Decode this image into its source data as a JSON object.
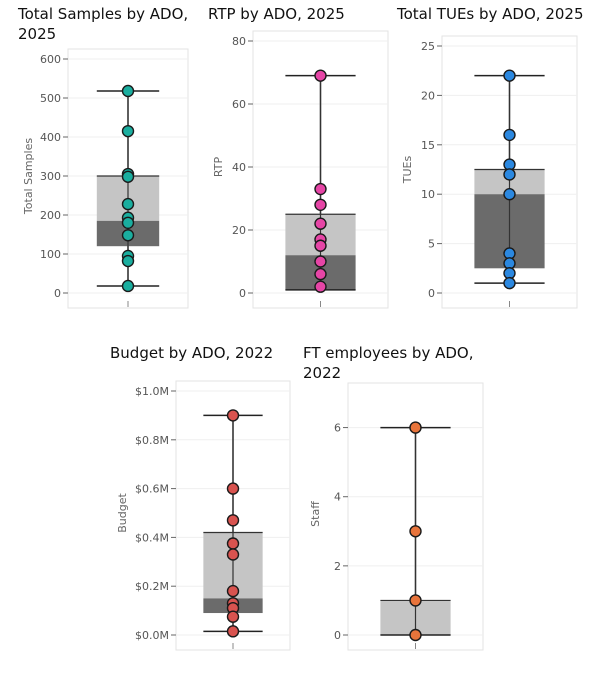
{
  "chart_data": [
    {
      "type": "box",
      "title": "Total Samples by ADO, 2025",
      "ylabel": "Total Samples",
      "ylim": [
        0,
        600
      ],
      "yticks": [
        0,
        100,
        200,
        300,
        400,
        500,
        600
      ],
      "tick_labels": [
        "0",
        "100",
        "200",
        "300",
        "400",
        "500",
        "600"
      ],
      "box": {
        "min": 18,
        "q1": 120,
        "median": 185,
        "q3": 300,
        "max": 518
      },
      "points": [
        518,
        415,
        305,
        298,
        228,
        193,
        180,
        148,
        95,
        82,
        18
      ],
      "point_color": "#1aae9f"
    },
    {
      "type": "box",
      "title": "RTP by ADO, 2025",
      "ylabel": "RTP",
      "ylim": [
        0,
        80
      ],
      "yticks": [
        0,
        20,
        40,
        60,
        80
      ],
      "tick_labels": [
        "0",
        "20",
        "40",
        "60",
        "80"
      ],
      "box": {
        "min": 1,
        "q1": 1,
        "median": 12,
        "q3": 25,
        "max": 69
      },
      "points": [
        69,
        33,
        28,
        22,
        17,
        15,
        10,
        6,
        2
      ],
      "point_color": "#e645a6"
    },
    {
      "type": "box",
      "title": "Total TUEs by ADO, 2025",
      "ylabel": "TUEs",
      "ylim": [
        0,
        25
      ],
      "yticks": [
        0,
        5,
        10,
        15,
        20,
        25
      ],
      "tick_labels": [
        "0",
        "5",
        "10",
        "15",
        "20",
        "25"
      ],
      "box": {
        "min": 1,
        "q1": 2.5,
        "median": 10,
        "q3": 12.5,
        "max": 22
      },
      "points": [
        22,
        16,
        13,
        12,
        10,
        4,
        3,
        2,
        1
      ],
      "point_color": "#2b88e0"
    },
    {
      "type": "box",
      "title": "Budget by ADO, 2022",
      "ylabel": "Budget",
      "ylim": [
        0,
        1000000
      ],
      "yticks": [
        0,
        200000,
        400000,
        600000,
        800000,
        1000000
      ],
      "tick_labels": [
        "$0.0M",
        "$0.2M",
        "$0.4M",
        "$0.6M",
        "$0.8M",
        "$1.0M"
      ],
      "box": {
        "min": 15000,
        "q1": 90000,
        "median": 150000,
        "q3": 420000,
        "max": 900000
      },
      "points": [
        900000,
        600000,
        470000,
        375000,
        330000,
        180000,
        130000,
        110000,
        75000,
        15000
      ],
      "point_color": "#d9534f"
    },
    {
      "type": "box",
      "title": "FT employees by ADO, 2022",
      "ylabel": "Staff",
      "ylim": [
        0,
        7
      ],
      "yticks": [
        0,
        2,
        4,
        6
      ],
      "tick_labels": [
        "0",
        "2",
        "4",
        "6"
      ],
      "box": {
        "min": 0,
        "q1": 0,
        "median": 0,
        "q3": 1,
        "max": 6
      },
      "points": [
        6,
        3,
        1,
        0
      ],
      "point_color": "#e8743b"
    }
  ]
}
